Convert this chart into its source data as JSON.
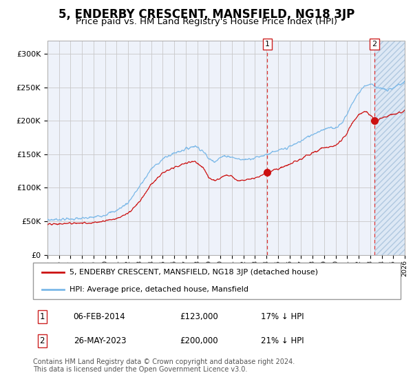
{
  "title": "5, ENDERBY CRESCENT, MANSFIELD, NG18 3JP",
  "subtitle": "Price paid vs. HM Land Registry's House Price Index (HPI)",
  "ylabel_ticks": [
    "£0",
    "£50K",
    "£100K",
    "£150K",
    "£200K",
    "£250K",
    "£300K"
  ],
  "ytick_vals": [
    0,
    50000,
    100000,
    150000,
    200000,
    250000,
    300000
  ],
  "ylim": [
    0,
    320000
  ],
  "xlim_start": 1995.0,
  "xlim_end": 2026.0,
  "hpi_color": "#7ab8e8",
  "price_color": "#cc1111",
  "marker1_date": 2014.08,
  "marker1_price": 123000,
  "marker2_date": 2023.38,
  "marker2_price": 200000,
  "transaction1": "06-FEB-2014",
  "transaction1_price": "£123,000",
  "transaction1_hpi": "17% ↓ HPI",
  "transaction2": "26-MAY-2023",
  "transaction2_price": "£200,000",
  "transaction2_hpi": "21% ↓ HPI",
  "legend_line1": "5, ENDERBY CRESCENT, MANSFIELD, NG18 3JP (detached house)",
  "legend_line2": "HPI: Average price, detached house, Mansfield",
  "footnote": "Contains HM Land Registry data © Crown copyright and database right 2024.\nThis data is licensed under the Open Government Licence v3.0.",
  "bg_color": "#eef2fa",
  "hatch_bg": "#dde8f5",
  "grid_color": "#c8c8c8",
  "title_fontsize": 12,
  "subtitle_fontsize": 9.5,
  "tick_fontsize": 8,
  "hpi_anchors_t": [
    1995.0,
    1996.0,
    1997.0,
    1998.0,
    1999.0,
    2000.0,
    2001.0,
    2002.0,
    2003.0,
    2004.0,
    2005.0,
    2006.0,
    2007.0,
    2007.8,
    2008.5,
    2009.0,
    2009.5,
    2010.0,
    2010.5,
    2011.0,
    2011.5,
    2012.0,
    2013.0,
    2014.0,
    2015.0,
    2016.0,
    2017.0,
    2018.0,
    2019.0,
    2020.0,
    2020.5,
    2021.0,
    2021.5,
    2022.0,
    2022.5,
    2023.0,
    2023.38,
    2023.5,
    2024.0,
    2024.5,
    2025.0,
    2026.0
  ],
  "hpi_anchors_v": [
    52000,
    53000,
    53500,
    54000,
    56000,
    60000,
    66000,
    78000,
    102000,
    128000,
    143000,
    152000,
    158000,
    163000,
    155000,
    143000,
    140000,
    145000,
    148000,
    146000,
    143000,
    142000,
    145000,
    150000,
    155000,
    161000,
    170000,
    180000,
    188000,
    190000,
    196000,
    210000,
    228000,
    242000,
    252000,
    255000,
    253000,
    251000,
    248000,
    245000,
    250000,
    258000
  ],
  "price_anchors_t": [
    1995.0,
    1996.0,
    1997.0,
    1998.0,
    1999.0,
    2000.0,
    2001.0,
    2002.0,
    2003.0,
    2004.0,
    2005.0,
    2006.0,
    2007.0,
    2007.8,
    2008.5,
    2009.0,
    2009.5,
    2010.0,
    2010.5,
    2011.0,
    2011.5,
    2012.0,
    2013.0,
    2013.5,
    2014.0,
    2014.08,
    2015.0,
    2016.0,
    2017.0,
    2018.0,
    2019.0,
    2020.0,
    2020.5,
    2021.0,
    2021.5,
    2022.0,
    2022.5,
    2023.0,
    2023.38,
    2023.5,
    2024.0,
    2025.0,
    2026.0
  ],
  "price_anchors_v": [
    45000,
    46000,
    47000,
    47500,
    48000,
    51000,
    54000,
    62000,
    80000,
    105000,
    122000,
    130000,
    137000,
    140000,
    130000,
    115000,
    110000,
    115000,
    120000,
    117000,
    110000,
    112000,
    115000,
    118000,
    122000,
    123000,
    128000,
    135000,
    143000,
    152000,
    160000,
    163000,
    170000,
    182000,
    198000,
    208000,
    215000,
    210000,
    200000,
    198000,
    205000,
    210000,
    215000
  ]
}
